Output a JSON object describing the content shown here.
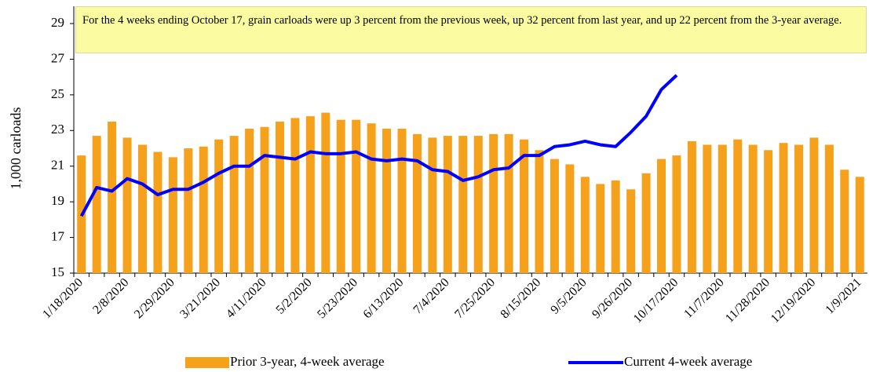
{
  "chart_data": {
    "type": "bar-line",
    "annotation": "For the 4 weeks ending October 17, grain carloads were up 3 percent from the previous week, up 32 percent from last year, and up 22 percent from the 3-year average.",
    "y_label": "1,000 carloads",
    "categories": [
      "1/18/2020",
      null,
      null,
      "2/8/2020",
      null,
      null,
      "2/29/2020",
      null,
      null,
      "3/21/2020",
      null,
      null,
      "4/11/2020",
      null,
      null,
      "5/2/2020",
      null,
      null,
      "5/23/2020",
      null,
      null,
      "6/13/2020",
      null,
      null,
      "7/4/2020",
      null,
      null,
      "7/25/2020",
      null,
      null,
      "8/15/2020",
      null,
      null,
      "9/5/2020",
      null,
      null,
      "9/26/2020",
      null,
      null,
      "10/17/2020",
      null,
      null,
      "11/7/2020",
      null,
      null,
      "11/28/2020",
      null,
      null,
      "12/19/2020",
      null,
      null,
      "1/9/2021"
    ],
    "series": [
      {
        "name": "Prior 3-year, 4-week average",
        "kind": "bar",
        "color": "#f5a11c",
        "values": [
          21.6,
          22.7,
          23.5,
          22.6,
          22.2,
          21.8,
          21.5,
          22.0,
          22.1,
          22.5,
          22.7,
          23.1,
          23.2,
          23.5,
          23.7,
          23.8,
          24.0,
          23.6,
          23.6,
          23.4,
          23.1,
          23.1,
          22.8,
          22.6,
          22.7,
          22.7,
          22.7,
          22.8,
          22.8,
          22.5,
          21.9,
          21.4,
          21.1,
          20.4,
          20.0,
          20.2,
          19.7,
          20.6,
          21.4,
          21.6,
          22.4,
          22.2,
          22.2,
          22.5,
          22.2,
          21.9,
          22.3,
          22.2,
          22.6,
          22.2,
          20.8,
          20.4
        ]
      },
      {
        "name": "Current 4-week average",
        "kind": "line",
        "color": "#0000ff",
        "values": [
          18.2,
          19.8,
          19.6,
          20.3,
          20.0,
          19.4,
          19.7,
          19.7,
          20.1,
          20.6,
          21.0,
          21.0,
          21.6,
          21.5,
          21.4,
          21.8,
          21.7,
          21.7,
          21.8,
          21.4,
          21.3,
          21.4,
          21.3,
          20.8,
          20.7,
          20.2,
          20.4,
          20.8,
          20.9,
          21.6,
          21.6,
          22.1,
          22.2,
          22.4,
          22.2,
          22.1,
          22.9,
          23.8,
          25.3,
          26.1,
          null,
          null,
          null,
          null,
          null,
          null,
          null,
          null,
          null,
          null,
          null,
          null
        ]
      }
    ],
    "ylim": [
      15,
      29
    ],
    "yticks": [
      15,
      17,
      19,
      21,
      23,
      25,
      27,
      29
    ]
  }
}
